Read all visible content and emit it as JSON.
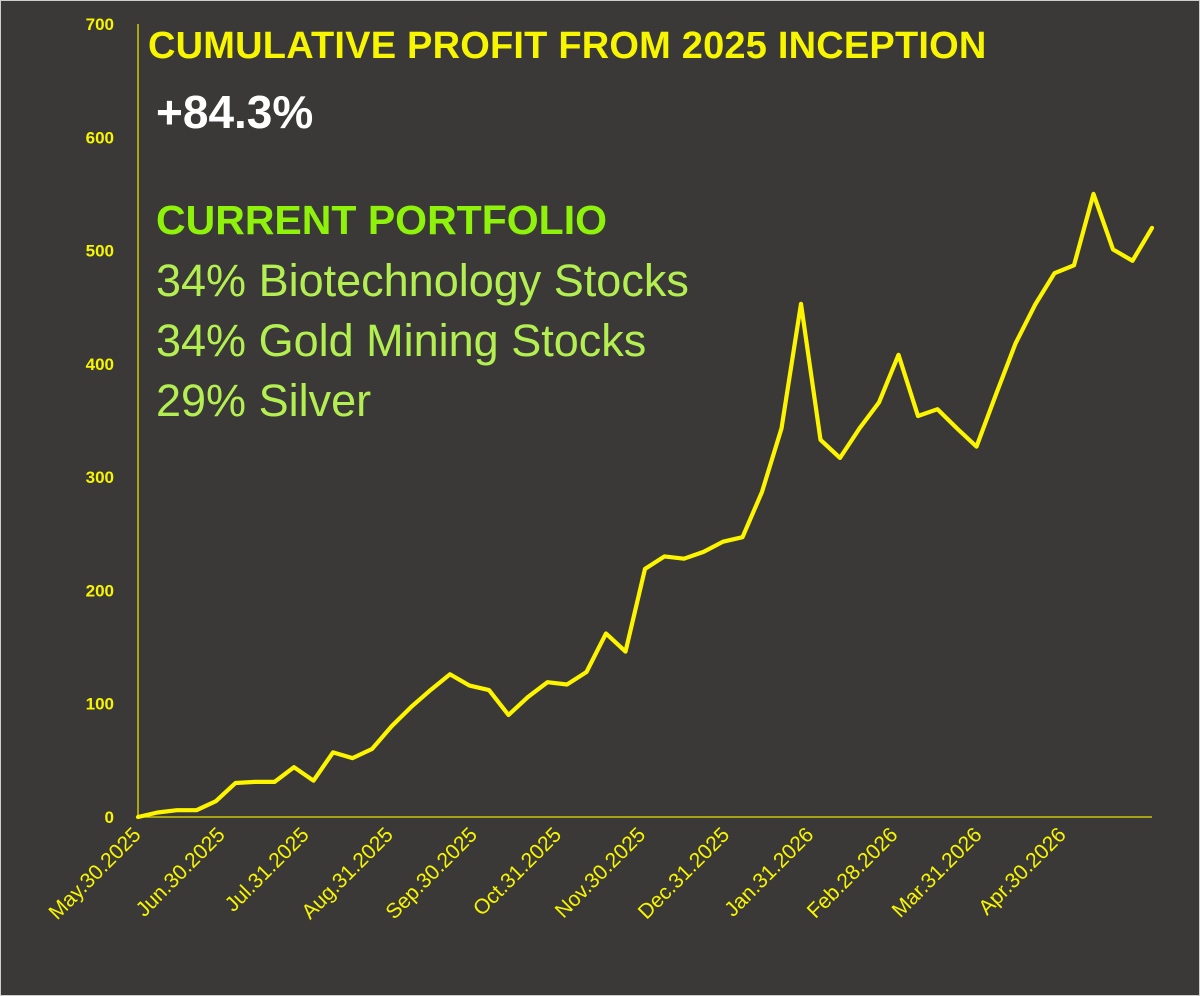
{
  "colors": {
    "background": "#3a3937",
    "line": "#fdf500",
    "axis": "#e8e200",
    "title": "#f7f500",
    "headline": "#ffffff",
    "portfolio_heading": "#8ff20a",
    "holdings": "#b3ef50"
  },
  "header": {
    "title": "CUMULATIVE PROFIT FROM 2025 INCEPTION",
    "headline_value": "+84.3%"
  },
  "portfolio": {
    "heading": "CURRENT PORTFOLIO",
    "holdings": [
      "34% Biotechnology Stocks",
      "34% Gold Mining Stocks",
      "29% Silver"
    ]
  },
  "chart_data": {
    "type": "line",
    "title": "CUMULATIVE PROFIT FROM 2025 INCEPTION",
    "xlabel": "",
    "ylabel": "",
    "ylim": [
      0,
      700
    ],
    "yticks": [
      0,
      100,
      200,
      300,
      400,
      500,
      600,
      700
    ],
    "xticks": [
      "May.30.2025",
      "Jun.30.2025",
      "Jul.31.2025",
      "Aug.31.2025",
      "Sep.30.2025",
      "Oct.31.2025",
      "Nov.30.2025",
      "Dec.31.2025",
      "Jan.31.2026",
      "Feb.28.2026",
      "Mar.31.2026",
      "Apr.30.2026"
    ],
    "grid": false,
    "legend": "none",
    "series": [
      {
        "values": [
          0,
          4,
          6,
          6,
          14,
          30,
          31,
          31,
          44,
          32,
          57,
          52,
          60,
          80,
          97,
          112,
          126,
          116,
          112,
          90,
          106,
          119,
          117,
          128,
          162,
          146,
          219,
          230,
          228,
          234,
          243,
          247,
          287,
          343,
          453,
          333,
          317,
          343,
          366,
          408,
          354,
          360,
          343,
          327,
          373,
          418,
          452,
          480,
          487,
          550,
          501,
          491,
          520
        ]
      }
    ]
  }
}
